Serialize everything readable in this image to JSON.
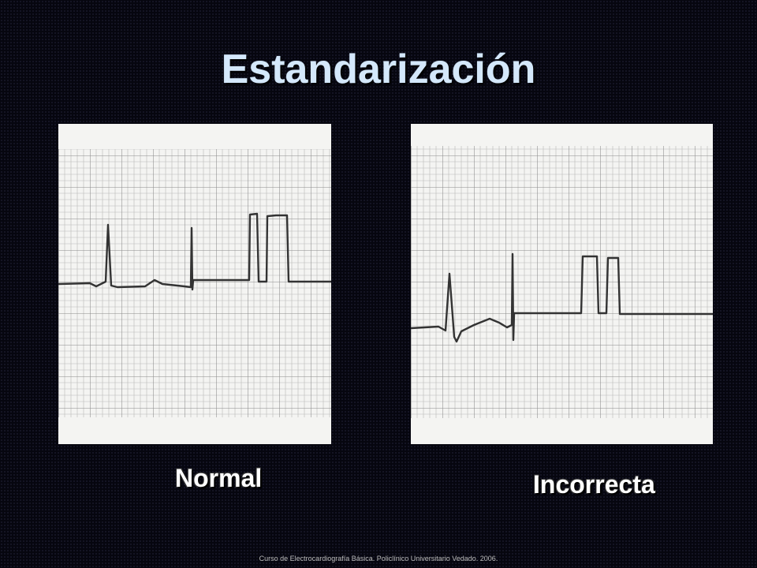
{
  "title": "Estandarización",
  "panels": [
    {
      "label": "Normal"
    },
    {
      "label": "Incorrecta"
    }
  ],
  "footer": "Curso de Electrocardiografía Básica. Policlínico Universitario Vedado. 2006."
}
